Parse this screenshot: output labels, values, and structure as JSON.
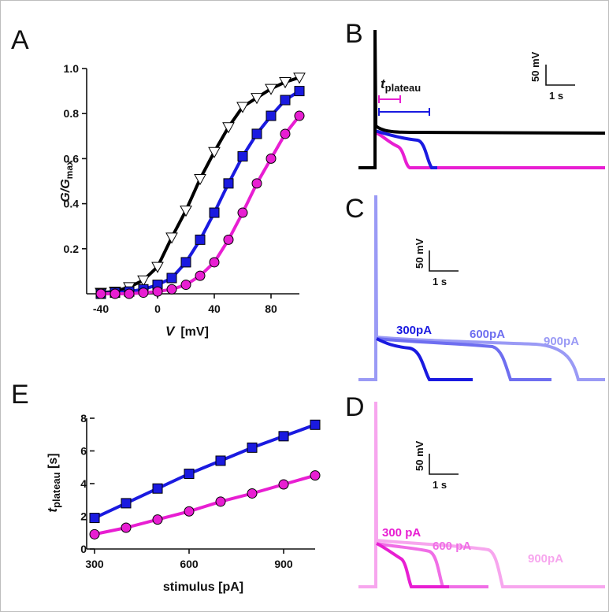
{
  "colors": {
    "black": "#000000",
    "blue": "#1a1ae0",
    "magenta": "#e81ed2",
    "blue_mid": "#6e6ef0",
    "blue_light": "#9a9af5",
    "magenta_mid": "#f06ee6",
    "magenta_light": "#f7a6ee",
    "frame": "#bdbdbd"
  },
  "panels": {
    "A": {
      "letter": "A",
      "y_label_G": "G/G",
      "y_label_sub": "max",
      "x_label_V": "V",
      "x_label_unit": "[mV]"
    },
    "B": {
      "letter": "B",
      "t_label": "t",
      "t_sub": "plateau",
      "scale_v": "50 mV",
      "scale_t": "1 s"
    },
    "C": {
      "letter": "C",
      "scale_v": "50 mV",
      "scale_t": "1 s",
      "labels": [
        "300pA",
        "600pA",
        "900pA"
      ]
    },
    "D": {
      "letter": "D",
      "scale_v": "50 mV",
      "scale_t": "1 s",
      "labels": [
        "300 pA",
        "600 pA",
        "900pA"
      ]
    },
    "E": {
      "letter": "E",
      "y_label_t": "t",
      "y_label_sub": "plateau",
      "y_label_unit": " [s]",
      "x_label": "stimulus [pA]"
    }
  },
  "chart_data": [
    {
      "panel": "A",
      "type": "line",
      "xlabel": "V [mV]",
      "ylabel": "G/Gmax",
      "xlim": [
        -50,
        100
      ],
      "ylim": [
        0,
        1.0
      ],
      "xticks": [
        -40,
        0,
        40,
        80
      ],
      "yticks": [
        0.2,
        0.4,
        0.6,
        0.8,
        1.0
      ],
      "series": [
        {
          "marker": "triangle-down-open",
          "color": "#000000",
          "x": [
            -40,
            -30,
            -20,
            -10,
            0,
            10,
            20,
            30,
            40,
            50,
            60,
            70,
            80,
            90,
            100
          ],
          "y": [
            0.005,
            0.01,
            0.03,
            0.06,
            0.12,
            0.25,
            0.37,
            0.51,
            0.63,
            0.74,
            0.83,
            0.87,
            0.91,
            0.94,
            0.96
          ]
        },
        {
          "marker": "square",
          "color": "#1a1ae0",
          "x": [
            -40,
            -30,
            -20,
            -10,
            0,
            10,
            20,
            30,
            40,
            50,
            60,
            70,
            80,
            90,
            100
          ],
          "y": [
            0.0,
            0.005,
            0.01,
            0.02,
            0.04,
            0.07,
            0.14,
            0.24,
            0.36,
            0.49,
            0.61,
            0.71,
            0.79,
            0.86,
            0.9
          ]
        },
        {
          "marker": "circle",
          "color": "#e81ed2",
          "x": [
            -40,
            -30,
            -20,
            -10,
            0,
            10,
            20,
            30,
            40,
            50,
            60,
            70,
            80,
            90,
            100
          ],
          "y": [
            0.0,
            0.0,
            0.0,
            0.005,
            0.01,
            0.02,
            0.04,
            0.08,
            0.14,
            0.24,
            0.36,
            0.49,
            0.6,
            0.71,
            0.79
          ]
        }
      ]
    },
    {
      "panel": "E",
      "type": "line",
      "xlabel": "stimulus [pA]",
      "ylabel": "t plateau [s]",
      "xlim": [
        300,
        1000
      ],
      "ylim": [
        0,
        8
      ],
      "xticks": [
        300,
        600,
        900
      ],
      "yticks": [
        0,
        2,
        4,
        6,
        8
      ],
      "series": [
        {
          "marker": "square",
          "color": "#1a1ae0",
          "x": [
            300,
            400,
            500,
            600,
            700,
            800,
            900,
            1000
          ],
          "y": [
            1.9,
            2.8,
            3.7,
            4.6,
            5.4,
            6.2,
            6.9,
            7.6
          ]
        },
        {
          "marker": "circle",
          "color": "#e81ed2",
          "x": [
            300,
            400,
            500,
            600,
            700,
            800,
            900,
            1000
          ],
          "y": [
            0.9,
            1.3,
            1.8,
            2.3,
            2.9,
            3.4,
            3.95,
            4.5
          ]
        }
      ]
    }
  ]
}
